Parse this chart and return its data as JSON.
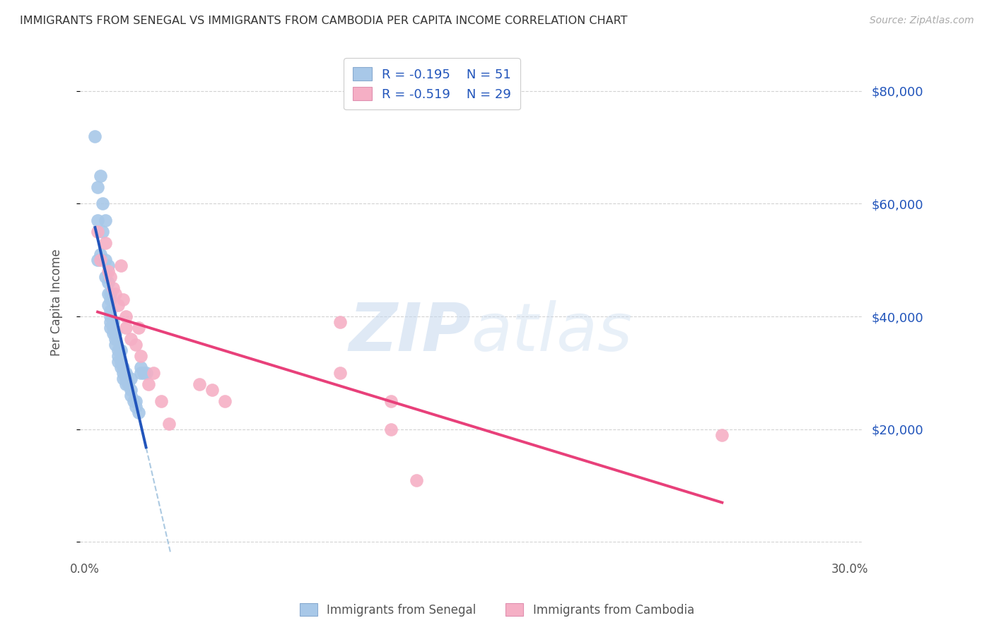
{
  "title": "IMMIGRANTS FROM SENEGAL VS IMMIGRANTS FROM CAMBODIA PER CAPITA INCOME CORRELATION CHART",
  "source": "Source: ZipAtlas.com",
  "ylabel": "Per Capita Income",
  "yticks": [
    0,
    20000,
    40000,
    60000,
    80000
  ],
  "ytick_labels": [
    "",
    "$20,000",
    "$40,000",
    "$60,000",
    "$80,000"
  ],
  "xticks": [
    0.0,
    0.05,
    0.1,
    0.15,
    0.2,
    0.25,
    0.3
  ],
  "xlim": [
    -0.002,
    0.305
  ],
  "ylim": [
    -2000,
    87000
  ],
  "legend_label1": "Immigrants from Senegal",
  "legend_label2": "Immigrants from Cambodia",
  "R1": "-0.195",
  "N1": "51",
  "R2": "-0.519",
  "N2": "29",
  "color_senegal": "#a8c8e8",
  "color_cambodia": "#f5afc5",
  "line_color_senegal": "#2255bb",
  "line_color_cambodia": "#e8407a",
  "line_color_dashed": "#90b8d8",
  "background_color": "#ffffff",
  "grid_color": "#c8c8c8",
  "title_color": "#333333",
  "axis_label_color": "#555555",
  "legend_text_color": "#2255bb",
  "right_ytick_color": "#2255bb",
  "watermark_zip": "ZIP",
  "watermark_atlas": "atlas",
  "senegal_x": [
    0.004,
    0.005,
    0.005,
    0.005,
    0.006,
    0.006,
    0.007,
    0.007,
    0.008,
    0.008,
    0.008,
    0.009,
    0.009,
    0.009,
    0.009,
    0.01,
    0.01,
    0.01,
    0.01,
    0.01,
    0.01,
    0.011,
    0.011,
    0.011,
    0.012,
    0.012,
    0.012,
    0.013,
    0.013,
    0.013,
    0.014,
    0.014,
    0.015,
    0.015,
    0.015,
    0.016,
    0.016,
    0.017,
    0.018,
    0.018,
    0.019,
    0.02,
    0.02,
    0.021,
    0.022,
    0.022,
    0.023,
    0.024,
    0.014,
    0.016,
    0.018
  ],
  "senegal_y": [
    72000,
    63000,
    57000,
    50000,
    65000,
    51000,
    60000,
    55000,
    57000,
    50000,
    47000,
    49000,
    46000,
    44000,
    42000,
    44000,
    43000,
    41000,
    40000,
    39000,
    38000,
    39000,
    38000,
    37000,
    37000,
    36000,
    35000,
    34000,
    33000,
    32000,
    32000,
    31000,
    31000,
    30000,
    29000,
    29000,
    28000,
    28000,
    27000,
    26000,
    25000,
    25000,
    24000,
    23000,
    31000,
    30000,
    30000,
    30000,
    34000,
    30000,
    29000
  ],
  "cambodia_x": [
    0.005,
    0.006,
    0.008,
    0.009,
    0.01,
    0.011,
    0.012,
    0.013,
    0.014,
    0.015,
    0.016,
    0.016,
    0.018,
    0.02,
    0.021,
    0.022,
    0.025,
    0.027,
    0.03,
    0.033,
    0.045,
    0.05,
    0.055,
    0.1,
    0.12,
    0.25,
    0.1,
    0.12,
    0.13
  ],
  "cambodia_y": [
    55000,
    50000,
    53000,
    48000,
    47000,
    45000,
    44000,
    42000,
    49000,
    43000,
    40000,
    38000,
    36000,
    35000,
    38000,
    33000,
    28000,
    30000,
    25000,
    21000,
    28000,
    27000,
    25000,
    39000,
    20000,
    19000,
    30000,
    25000,
    11000
  ]
}
